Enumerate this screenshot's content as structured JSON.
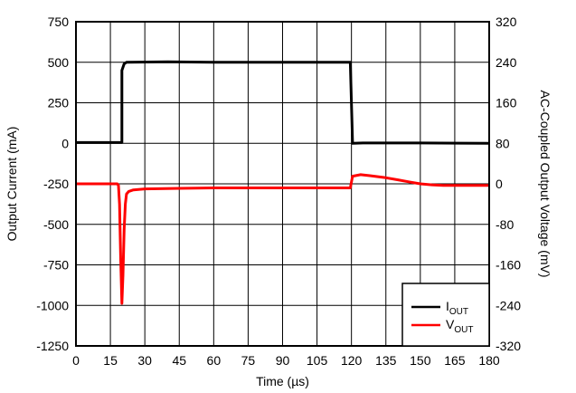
{
  "chart_data": {
    "type": "line",
    "xlabel": "Time (µs)",
    "ylabel_left": "Output Current (mA)",
    "ylabel_right": "AC-Coupled Output Voltage (mV)",
    "x_range": [
      0,
      180
    ],
    "y_left_range": [
      -1250,
      750
    ],
    "y_right_range": [
      -320,
      320
    ],
    "x_ticks": [
      "0",
      "15",
      "30",
      "45",
      "60",
      "75",
      "90",
      "105",
      "120",
      "135",
      "150",
      "165",
      "180"
    ],
    "y_left_ticks": [
      "-1250",
      "-1000",
      "-750",
      "-500",
      "-250",
      "0",
      "250",
      "500",
      "750"
    ],
    "y_right_ticks": [
      "-320",
      "-240",
      "-160",
      "-80",
      "0",
      "80",
      "160",
      "240",
      "320"
    ],
    "grid": true,
    "legend_position": "bottom-right",
    "series": [
      {
        "name": "I",
        "subscript": "OUT",
        "color": "#000000",
        "axis": "left",
        "points": [
          [
            0,
            5
          ],
          [
            19,
            5
          ],
          [
            20,
            5
          ],
          [
            20,
            450
          ],
          [
            21,
            490
          ],
          [
            22,
            500
          ],
          [
            40,
            503
          ],
          [
            60,
            500
          ],
          [
            80,
            500
          ],
          [
            100,
            500
          ],
          [
            118,
            500
          ],
          [
            119.5,
            500
          ],
          [
            120.5,
            0
          ],
          [
            125,
            2
          ],
          [
            150,
            2
          ],
          [
            180,
            0
          ]
        ]
      },
      {
        "name": "V",
        "subscript": "OUT",
        "color": "#ff0000",
        "axis": "right",
        "points": [
          [
            0,
            0
          ],
          [
            18,
            0
          ],
          [
            18.5,
            -3
          ],
          [
            19,
            -40
          ],
          [
            19.5,
            -150
          ],
          [
            20,
            -236
          ],
          [
            20.5,
            -180
          ],
          [
            21,
            -90
          ],
          [
            21.5,
            -40
          ],
          [
            22,
            -20
          ],
          [
            23,
            -15
          ],
          [
            25,
            -12
          ],
          [
            30,
            -10
          ],
          [
            45,
            -9
          ],
          [
            60,
            -8
          ],
          [
            75,
            -8
          ],
          [
            90,
            -8
          ],
          [
            105,
            -8
          ],
          [
            119.5,
            -8
          ],
          [
            120.5,
            15
          ],
          [
            124,
            18
          ],
          [
            128,
            16
          ],
          [
            135,
            12
          ],
          [
            140,
            8
          ],
          [
            145,
            4
          ],
          [
            150,
            0
          ],
          [
            155,
            -2
          ],
          [
            160,
            -3
          ],
          [
            165,
            -3
          ],
          [
            180,
            -3
          ]
        ]
      }
    ]
  }
}
